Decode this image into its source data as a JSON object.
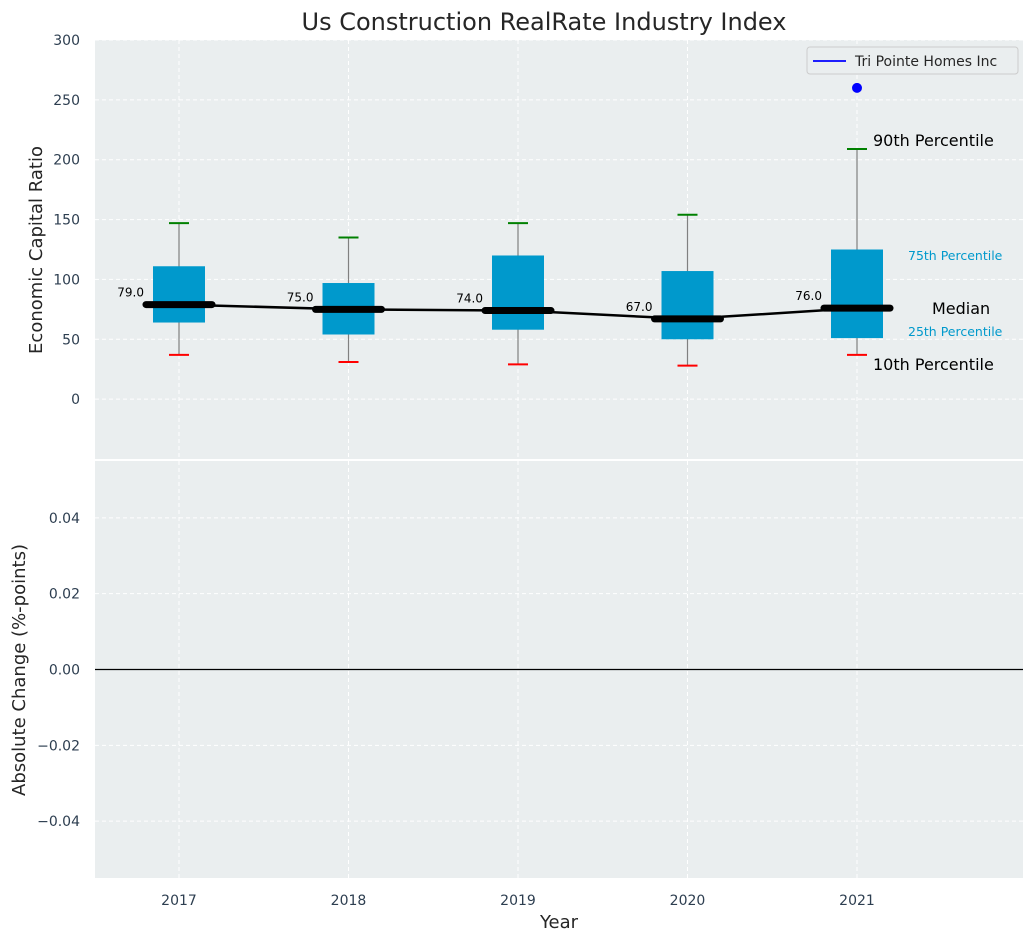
{
  "colors": {
    "background": "#ffffff",
    "panel": "#eaeeef",
    "box": "#0099cc",
    "median": "#000000",
    "p90_cap": "#008000",
    "p10_cap": "#ff0000",
    "whisker": "#808080",
    "company": "#0000ff",
    "zero_line": "#000000",
    "grid": "#ffffff"
  },
  "chart_data": {
    "type": "box",
    "title": "Us Construction RealRate Industry Index",
    "xlabel": "Year",
    "top_panel": {
      "ylabel": "Economic Capital Ratio",
      "ylim": [
        -50,
        300
      ],
      "yticks": [
        0,
        50,
        100,
        150,
        200,
        250,
        300
      ],
      "grid": true,
      "categories": [
        "2017",
        "2018",
        "2019",
        "2020",
        "2021"
      ],
      "p10": [
        37,
        31,
        29,
        28,
        37
      ],
      "p25": [
        64,
        54,
        58,
        50,
        51
      ],
      "median": [
        79,
        75,
        74,
        67,
        76
      ],
      "p75": [
        111,
        97,
        120,
        107,
        125
      ],
      "p90": [
        147,
        135,
        147,
        154,
        209
      ],
      "median_labels": [
        "79.0",
        "75.0",
        "74.0",
        "67.0",
        "76.0"
      ],
      "series": [
        {
          "name": "Tri Pointe Homes Inc",
          "points": [
            {
              "x": "2021",
              "y": 260
            }
          ]
        }
      ],
      "legend_position": "top-right",
      "annotations": {
        "p90": "90th Percentile",
        "p75": "75th Percentile",
        "median": "Median",
        "p25": "25th Percentile",
        "p10": "10th Percentile"
      }
    },
    "bottom_panel": {
      "ylabel": "Absolute Change (%-points)",
      "ylim": [
        -0.055,
        0.055
      ],
      "yticks": [
        "0.04",
        "0.02",
        "0.00",
        "−0.02",
        "−0.04"
      ],
      "ytick_values": [
        0.04,
        0.02,
        0.0,
        -0.02,
        -0.04
      ],
      "grid": true,
      "zero_line": 0.0
    }
  }
}
